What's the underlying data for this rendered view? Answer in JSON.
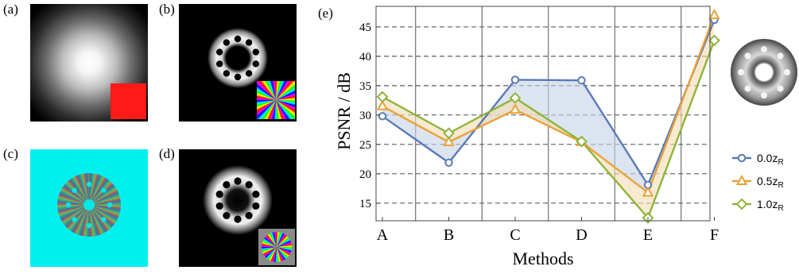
{
  "figure": {
    "panels": [
      {
        "label": "(a)",
        "content": "gaussian-beam",
        "overlay": "red-phase-square",
        "background": "#000000"
      },
      {
        "label": "(b)",
        "content": "ring-of-holes",
        "overlay": "spiral-phase-rainbow",
        "background": "#000000"
      },
      {
        "label": "(c)",
        "content": "ring-of-holes-rainbow",
        "overlay": "",
        "background": "#00f0f0"
      },
      {
        "label": "(d)",
        "content": "ring-of-holes-blurred",
        "overlay": "spiral-phase-gray",
        "background": "#000000"
      }
    ],
    "inset": "ring-of-holes-inset"
  },
  "chart_data": {
    "panel_label": "(e)",
    "type": "line",
    "categories": [
      "A",
      "B",
      "C",
      "D",
      "E",
      "F"
    ],
    "xlabel": "Methods",
    "ylabel": "PSNR / dB",
    "ylim": [
      12,
      48.5
    ],
    "yticks": [
      15,
      20,
      25,
      30,
      35,
      40,
      45
    ],
    "grid": "dashed horizontal and solid vertical separators",
    "legend_position": "right",
    "series": [
      {
        "name": "0.0z",
        "name_sub": "R",
        "marker": "circle",
        "color": "#5a7bb5",
        "values": [
          29.8,
          21.9,
          36.0,
          35.9,
          18.1,
          46.2
        ]
      },
      {
        "name": "0.5z",
        "name_sub": "R",
        "marker": "triangle",
        "color": "#e8a23a",
        "values": [
          31.5,
          25.4,
          30.9,
          25.4,
          16.8,
          47.0
        ]
      },
      {
        "name": "1.0z",
        "name_sub": "R",
        "marker": "diamond",
        "color": "#8fb43a",
        "values": [
          33.1,
          26.9,
          32.9,
          25.5,
          12.5,
          42.7
        ]
      }
    ]
  }
}
